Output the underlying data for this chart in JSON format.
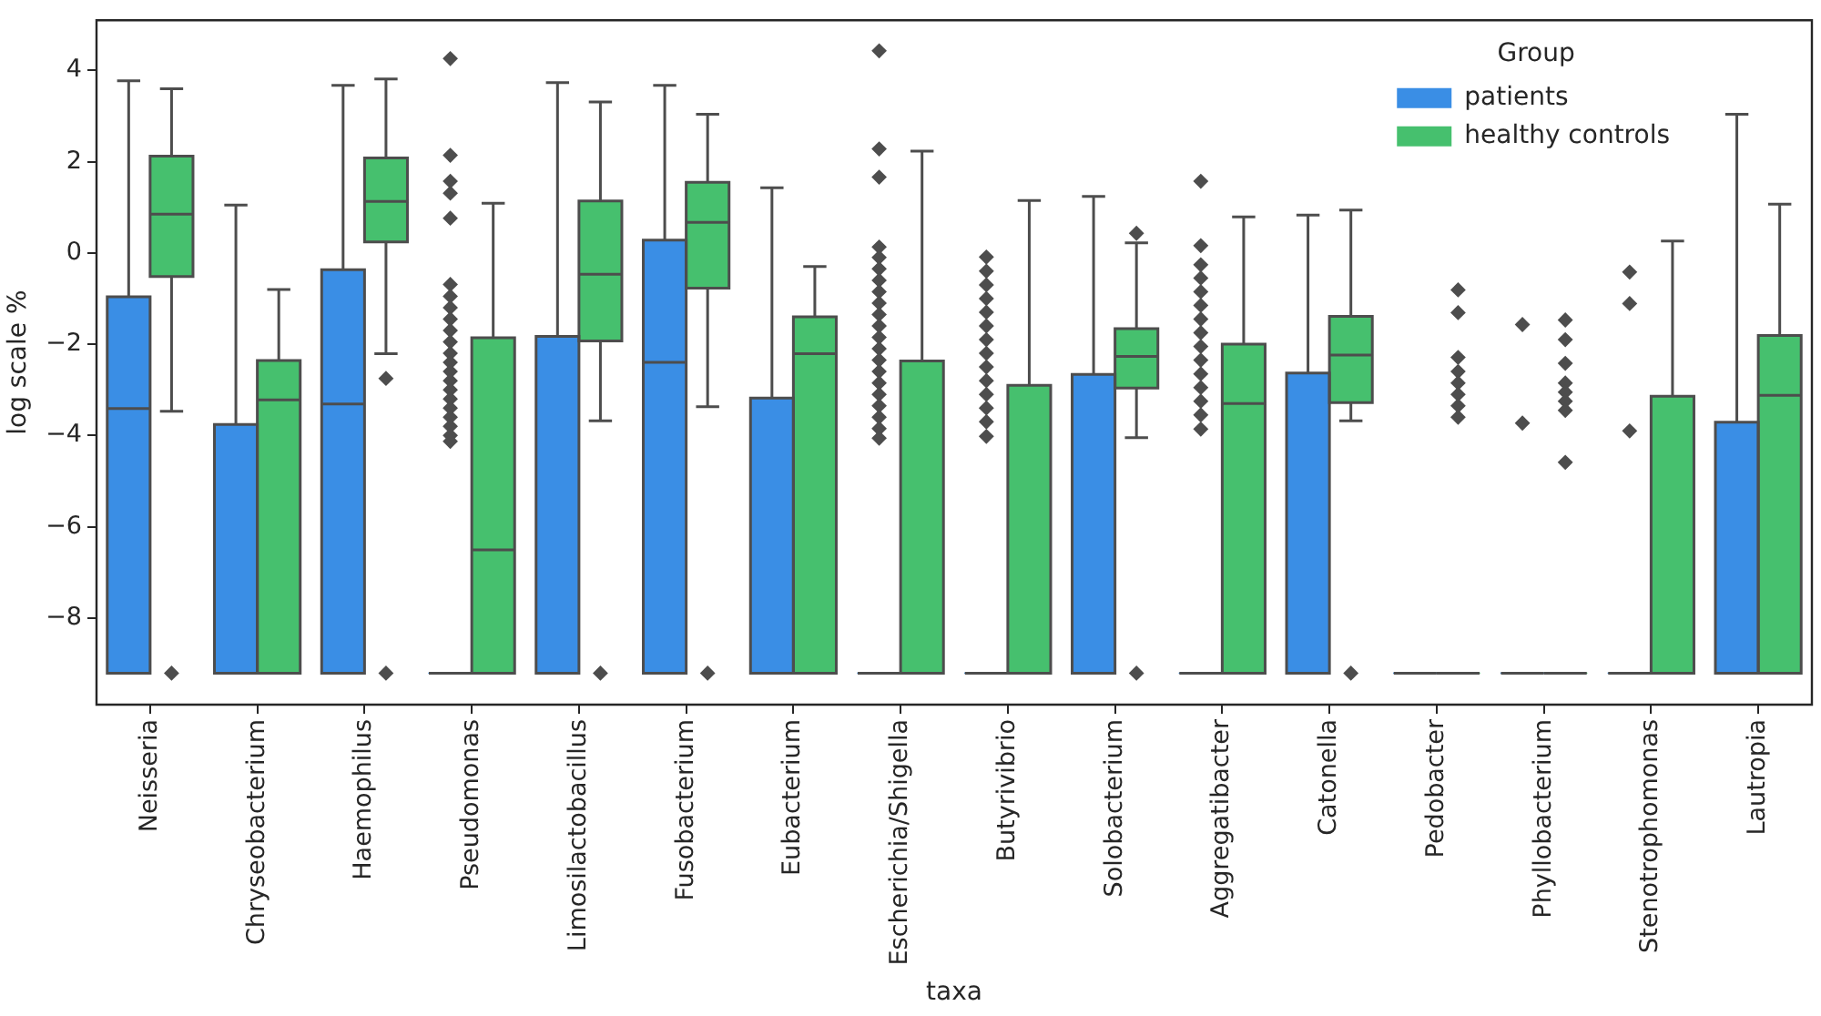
{
  "chart_data": {
    "type": "box",
    "xlabel": "taxa",
    "ylabel": "log scale %",
    "legend_title": "Group",
    "legend": "top right",
    "marker": "diamond",
    "categories": [
      "Neisseria",
      "Chryseobacterium",
      "Haemophilus",
      "Pseudomonas",
      "Limosilactobacillus",
      "Fusobacterium",
      "Eubacterium",
      "Escherichia/Shigella",
      "Butyrivibrio",
      "Solobacterium",
      "Aggregatibacter",
      "Catonella",
      "Pedobacter",
      "Phyllobacterium",
      "Stenotrophomonas",
      "Lautropia"
    ],
    "ylim": [
      -9.9,
      5.1
    ],
    "yticks": [
      -8,
      -6,
      -4,
      -2,
      0,
      2,
      4
    ],
    "series": [
      {
        "name": "patients",
        "color": "#3a8ee5",
        "boxes": [
          {
            "low": -9.21,
            "q1": -9.21,
            "median": -3.41,
            "q3": -0.96,
            "high": 3.77
          },
          {
            "low": -9.21,
            "q1": -9.21,
            "median": -9.21,
            "q3": -3.76,
            "high": 1.05
          },
          {
            "low": -9.21,
            "q1": -9.21,
            "median": -3.31,
            "q3": -0.37,
            "high": 3.67
          },
          {
            "low": -9.21,
            "q1": -9.21,
            "median": -9.21,
            "q3": -9.21,
            "high": -9.21,
            "outliers": [
              4.26,
              2.14,
              1.57,
              1.31,
              0.76,
              -0.69,
              -0.95,
              -1.2,
              -1.45,
              -1.7,
              -1.95,
              -2.2,
              -2.4,
              -2.6,
              -2.8,
              -3.0,
              -3.2,
              -3.4,
              -3.6,
              -3.8,
              -4.0,
              -4.13
            ]
          },
          {
            "low": -9.21,
            "q1": -9.21,
            "median": -9.21,
            "q3": -1.83,
            "high": 3.73
          },
          {
            "low": -9.21,
            "q1": -9.21,
            "median": -2.4,
            "q3": 0.28,
            "high": 3.67
          },
          {
            "low": -9.21,
            "q1": -9.21,
            "median": -9.21,
            "q3": -3.18,
            "high": 1.43
          },
          {
            "low": -9.21,
            "q1": -9.21,
            "median": -9.21,
            "q3": -9.21,
            "high": -9.21,
            "outliers": [
              4.43,
              2.28,
              1.66,
              0.13,
              -0.1,
              -0.35,
              -0.6,
              -0.85,
              -1.1,
              -1.35,
              -1.6,
              -1.85,
              -2.1,
              -2.35,
              -2.6,
              -2.85,
              -3.1,
              -3.35,
              -3.6,
              -3.85,
              -4.06
            ]
          },
          {
            "low": -9.21,
            "q1": -9.21,
            "median": -9.21,
            "q3": -9.21,
            "high": -9.21,
            "outliers": [
              -0.09,
              -0.4,
              -0.7,
              -1.0,
              -1.3,
              -1.6,
              -1.9,
              -2.2,
              -2.5,
              -2.8,
              -3.1,
              -3.4,
              -3.7,
              -4.02
            ]
          },
          {
            "low": -9.21,
            "q1": -9.21,
            "median": -9.21,
            "q3": -2.66,
            "high": 1.24
          },
          {
            "low": -9.21,
            "q1": -9.21,
            "median": -9.21,
            "q3": -9.21,
            "high": -9.21,
            "outliers": [
              1.57,
              0.16,
              -0.26,
              -0.55,
              -0.85,
              -1.15,
              -1.45,
              -1.75,
              -2.05,
              -2.35,
              -2.65,
              -2.95,
              -3.25,
              -3.55,
              -3.86
            ]
          },
          {
            "low": -9.21,
            "q1": -9.21,
            "median": -9.21,
            "q3": -2.63,
            "high": 0.83
          },
          {
            "low": -9.21,
            "q1": -9.21,
            "median": -9.21,
            "q3": -9.21,
            "high": -9.21
          },
          {
            "low": -9.21,
            "q1": -9.21,
            "median": -9.21,
            "q3": -9.21,
            "high": -9.21,
            "outliers": [
              -1.57,
              -3.73
            ]
          },
          {
            "low": -9.21,
            "q1": -9.21,
            "median": -9.21,
            "q3": -9.21,
            "high": -9.21,
            "outliers": [
              -0.42,
              -1.11,
              -3.9
            ]
          },
          {
            "low": -9.21,
            "q1": -9.21,
            "median": -9.21,
            "q3": -3.71,
            "high": 3.04
          }
        ]
      },
      {
        "name": "healthy controls",
        "color": "#46c06e",
        "boxes": [
          {
            "low": -3.47,
            "q1": -0.52,
            "median": 0.85,
            "q3": 2.12,
            "high": 3.6,
            "outliers": [
              -9.21
            ]
          },
          {
            "low": -9.21,
            "q1": -9.21,
            "median": -3.22,
            "q3": -2.36,
            "high": -0.8
          },
          {
            "low": -2.21,
            "q1": 0.24,
            "median": 1.13,
            "q3": 2.08,
            "high": 3.81,
            "outliers": [
              -2.75,
              -9.21
            ]
          },
          {
            "low": -9.21,
            "q1": -9.21,
            "median": -6.51,
            "q3": -1.86,
            "high": 1.09
          },
          {
            "low": -3.68,
            "q1": -1.93,
            "median": -0.47,
            "q3": 1.14,
            "high": 3.31,
            "outliers": [
              -9.21
            ]
          },
          {
            "low": -3.37,
            "q1": -0.77,
            "median": 0.67,
            "q3": 1.55,
            "high": 3.04,
            "outliers": [
              -9.21
            ]
          },
          {
            "low": -9.21,
            "q1": -9.21,
            "median": -2.21,
            "q3": -1.4,
            "high": -0.3
          },
          {
            "low": -9.21,
            "q1": -9.21,
            "median": -9.21,
            "q3": -2.37,
            "high": 2.23
          },
          {
            "low": -9.21,
            "q1": -9.21,
            "median": -9.21,
            "q3": -2.9,
            "high": 1.15
          },
          {
            "low": -4.05,
            "q1": -2.96,
            "median": -2.27,
            "q3": -1.66,
            "high": 0.22,
            "outliers": [
              0.43,
              -9.21
            ]
          },
          {
            "low": -9.21,
            "q1": -9.21,
            "median": -3.3,
            "q3": -2.0,
            "high": 0.79
          },
          {
            "low": -3.68,
            "q1": -3.28,
            "median": -2.24,
            "q3": -1.39,
            "high": 0.94,
            "outliers": [
              -9.21
            ]
          },
          {
            "low": -9.21,
            "q1": -9.21,
            "median": -9.21,
            "q3": -9.21,
            "high": -9.21,
            "outliers": [
              -0.81,
              -1.31,
              -2.29,
              -2.6,
              -2.85,
              -3.1,
              -3.35,
              -3.6
            ]
          },
          {
            "low": -9.21,
            "q1": -9.21,
            "median": -9.21,
            "q3": -9.21,
            "high": -9.21,
            "outliers": [
              -1.47,
              -1.9,
              -2.42,
              -2.85,
              -3.05,
              -3.25,
              -3.45,
              -4.59
            ]
          },
          {
            "low": -9.21,
            "q1": -9.21,
            "median": -9.21,
            "q3": -3.14,
            "high": 0.26
          },
          {
            "low": -9.21,
            "q1": -9.21,
            "median": -3.12,
            "q3": -1.81,
            "high": 1.07
          }
        ]
      }
    ]
  }
}
